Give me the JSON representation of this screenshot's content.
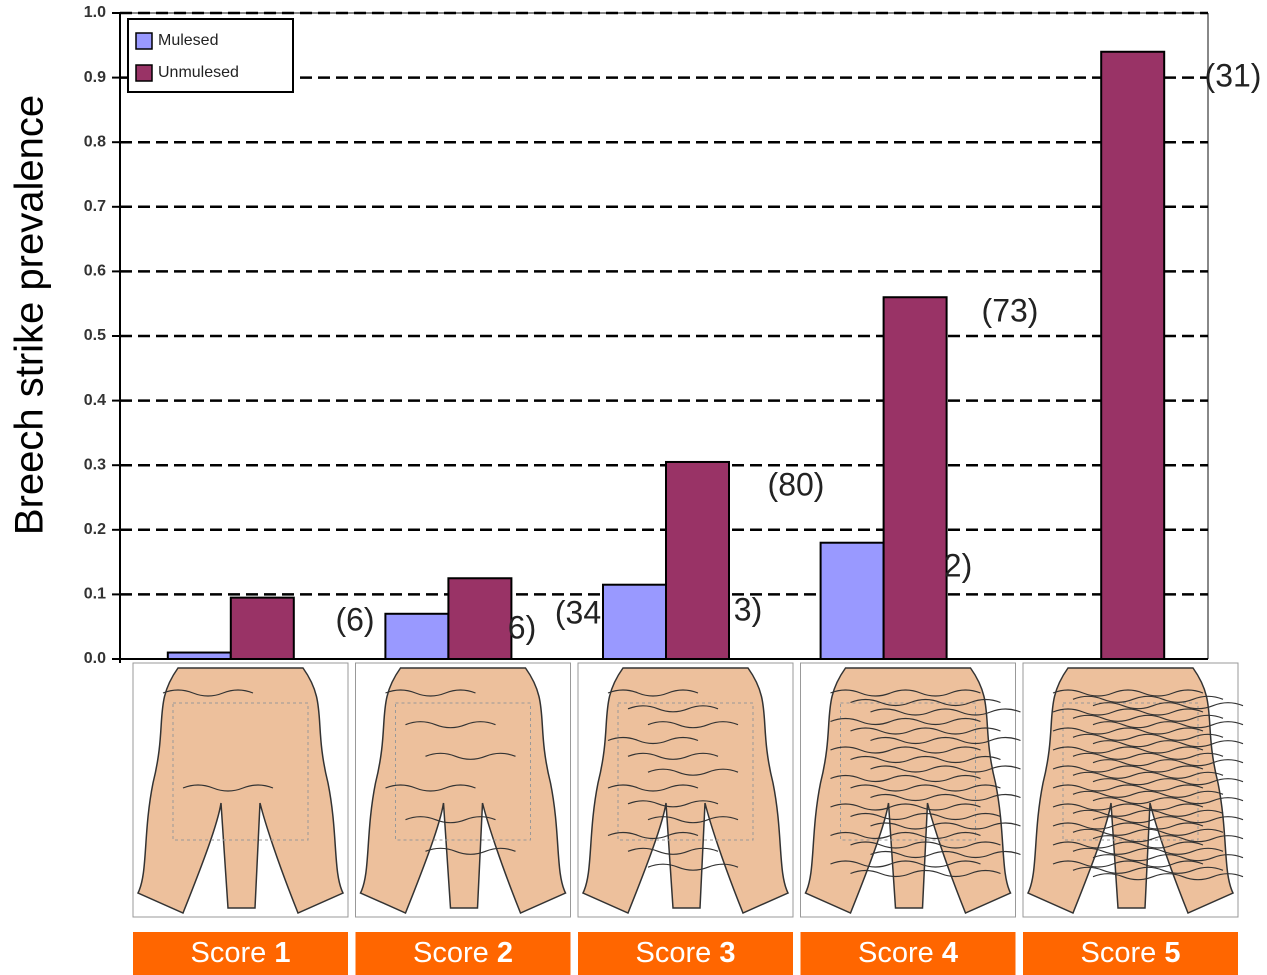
{
  "chart_data": {
    "type": "bar",
    "y_label": "Breech strike prevalence",
    "category_prefix": "Score",
    "categories": [
      "1",
      "2",
      "3",
      "4",
      "5"
    ],
    "series": [
      {
        "name": "Mulesed",
        "color": "#9999ff",
        "values": [
          0.01,
          0.07,
          0.115,
          0.18,
          null
        ]
      },
      {
        "name": "Unmulesed",
        "color": "#993366",
        "values": [
          0.095,
          0.125,
          0.305,
          0.56,
          0.94
        ]
      }
    ],
    "ylim": [
      0,
      1
    ],
    "yticks": [
      {
        "value": 0,
        "label": "0.0"
      },
      0.1,
      0.2,
      0.3,
      0.4,
      0.5,
      0.6,
      0.7,
      0.8,
      0.9,
      {
        "value": 1,
        "label": "1.0"
      }
    ],
    "grid": true,
    "legend": "top-left",
    "annotations": [
      "(6)",
      "6)",
      "(34",
      "3)",
      "(80)",
      "2)",
      "(73)",
      "(31)"
    ]
  }
}
